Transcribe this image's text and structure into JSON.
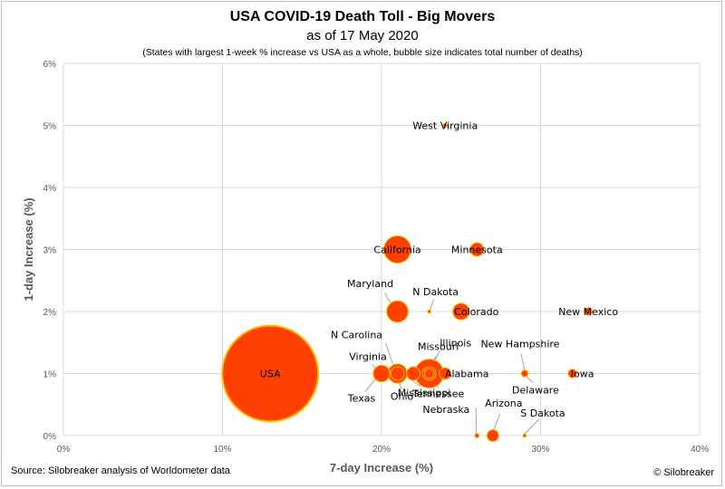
{
  "title": "USA COVID-19 Death Toll - Big Movers",
  "subtitle": "as of 17 May 2020",
  "note": "(States with largest 1-week % increase vs USA as a whole, bubble size indicates total number of deaths)",
  "source": "Source: Silobreaker analysis of Worldometer data",
  "credit": "© Silobreaker",
  "colors": {
    "bubble_fill": "#ff4000",
    "bubble_edge": "#ffc000",
    "grid": "#d9d9d9",
    "leader": "#a6a6a6"
  },
  "chart_data": {
    "type": "scatter",
    "xlabel": "7-day Increase (%)",
    "ylabel": "1-day Increase (%)",
    "xlim": [
      0,
      40
    ],
    "ylim": [
      0,
      6
    ],
    "x_ticks": [
      "0%",
      "10%",
      "20%",
      "30%",
      "40%"
    ],
    "y_ticks": [
      "0%",
      "1%",
      "2%",
      "3%",
      "4%",
      "5%",
      "6%"
    ],
    "grid": true,
    "points": [
      {
        "label": "USA",
        "x": 13,
        "y": 1,
        "size": 100
      },
      {
        "label": "California",
        "x": 21,
        "y": 3,
        "size": 8
      },
      {
        "label": "Minnesota",
        "x": 26,
        "y": 3,
        "size": 2
      },
      {
        "label": "West Virginia",
        "x": 24,
        "y": 5,
        "size": 0.2
      },
      {
        "label": "Maryland",
        "x": 21,
        "y": 2,
        "size": 5
      },
      {
        "label": "N Dakota",
        "x": 23,
        "y": 2,
        "size": 0.1
      },
      {
        "label": "Colorado",
        "x": 25,
        "y": 2,
        "size": 3
      },
      {
        "label": "New Mexico",
        "x": 33,
        "y": 2,
        "size": 0.7
      },
      {
        "label": "Mississippi",
        "x": 22,
        "y": 1,
        "size": 2
      },
      {
        "label": "Virginia",
        "x": 20,
        "y": 1,
        "size": 3
      },
      {
        "label": "Texas",
        "x": 20,
        "y": 1,
        "size": 3
      },
      {
        "label": "N Carolina",
        "x": 21,
        "y": 1,
        "size": 2
      },
      {
        "label": "Ohio",
        "x": 21,
        "y": 1,
        "size": 4
      },
      {
        "label": "Missouri",
        "x": 23,
        "y": 1,
        "size": 2
      },
      {
        "label": "Illinois",
        "x": 23,
        "y": 1,
        "size": 9
      },
      {
        "label": "Tennessee",
        "x": 23,
        "y": 1,
        "size": 1
      },
      {
        "label": "Alabama",
        "x": 24,
        "y": 1,
        "size": 1.5
      },
      {
        "label": "New Hampshire",
        "x": 29,
        "y": 1,
        "size": 0.5
      },
      {
        "label": "Delaware",
        "x": 29,
        "y": 1,
        "size": 0.5
      },
      {
        "label": "Iowa",
        "x": 32,
        "y": 1,
        "size": 0.8
      },
      {
        "label": "Nebraska",
        "x": 26,
        "y": 0,
        "size": 0.2
      },
      {
        "label": "Arizona",
        "x": 27,
        "y": 0,
        "size": 1.5
      },
      {
        "label": "S Dakota",
        "x": 29,
        "y": 0,
        "size": 0.1
      }
    ]
  }
}
